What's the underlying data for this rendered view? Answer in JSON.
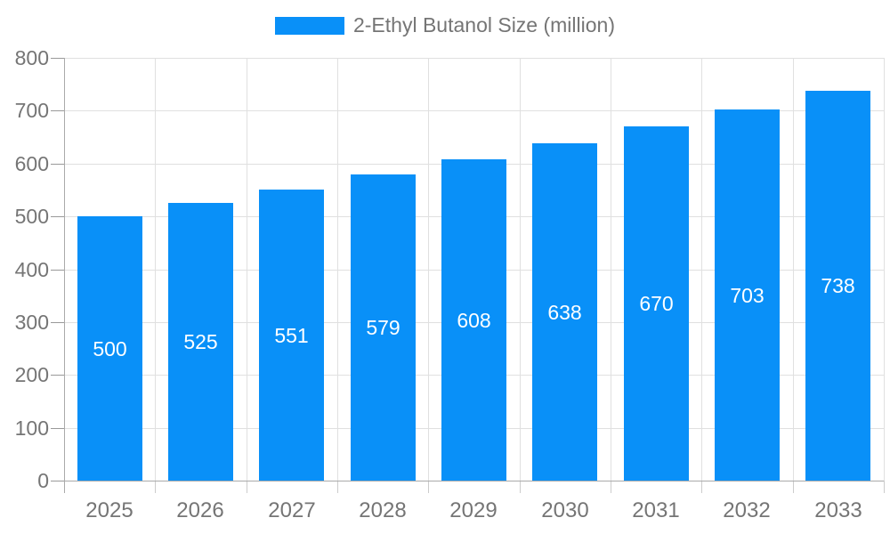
{
  "legend": {
    "label": "2-Ethyl Butanol Size (million)"
  },
  "chart_data": {
    "type": "bar",
    "title": "2-Ethyl Butanol Size (million)",
    "series_name": "2-Ethyl Butanol Size (million)",
    "categories": [
      "2025",
      "2026",
      "2027",
      "2028",
      "2029",
      "2030",
      "2031",
      "2032",
      "2033"
    ],
    "values": [
      500,
      525,
      551,
      579,
      608,
      638,
      670,
      703,
      738
    ],
    "value_labels": [
      "500",
      "525",
      "551",
      "579",
      "608",
      "638",
      "670",
      "703",
      "738"
    ],
    "xlabel": "",
    "ylabel": "",
    "ylim": [
      0,
      800
    ],
    "yticks": [
      0,
      100,
      200,
      300,
      400,
      500,
      600,
      700,
      800
    ],
    "grid": true,
    "legend_position": "top-center",
    "colors": {
      "bar": "#0990f8",
      "value_label": "#ffffff",
      "axis_text": "#757575",
      "gridline": "#e0e0e0",
      "axis_line": "#aaaaaa"
    }
  }
}
